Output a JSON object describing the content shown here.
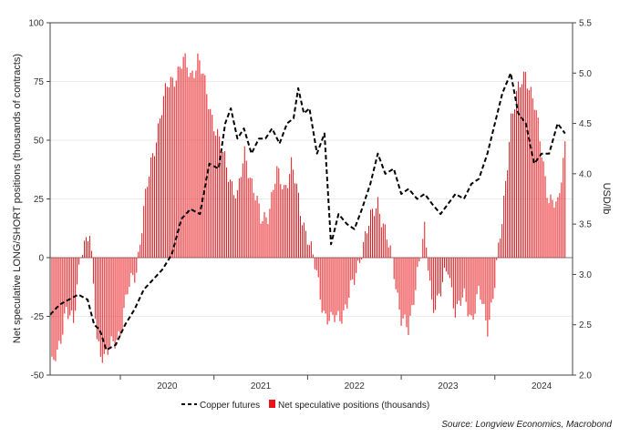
{
  "chart_data": {
    "type": "bar+line",
    "ylabel_left": "Net speculative LONG/SHORT positions (thousands of contracts)",
    "ylabel_right": "USD/lb",
    "ylim_left": [
      -50,
      100
    ],
    "ylim_right": [
      2.0,
      5.5
    ],
    "yticks_left": [
      "-50",
      "-25",
      "0",
      "25",
      "50",
      "75",
      "100"
    ],
    "yticks_right": [
      "2.0",
      "2.5",
      "3.0",
      "3.5",
      "4.0",
      "4.5",
      "5.0",
      "5.5"
    ],
    "x_range": [
      2019.25,
      2024.83
    ],
    "xticks": [
      "2020",
      "2021",
      "2022",
      "2023",
      "2024"
    ],
    "legend": [
      "Copper futures",
      "Net speculative positions (thousands)"
    ],
    "legend_position": "bottom-center",
    "colors": {
      "copper_futures": "#000000",
      "net_positions": "#e8161b"
    },
    "series": [
      {
        "name": "Net speculative positions (thousands)",
        "style": "bar",
        "axis": "left",
        "points": [
          [
            2019.25,
            -48
          ],
          [
            2019.33,
            -42
          ],
          [
            2019.42,
            -20
          ],
          [
            2019.5,
            -30
          ],
          [
            2019.58,
            5
          ],
          [
            2019.67,
            10
          ],
          [
            2019.75,
            -35
          ],
          [
            2019.83,
            -42
          ],
          [
            2019.92,
            -38
          ],
          [
            2020.0,
            -30
          ],
          [
            2020.08,
            -15
          ],
          [
            2020.17,
            -5
          ],
          [
            2020.25,
            20
          ],
          [
            2020.33,
            40
          ],
          [
            2020.42,
            60
          ],
          [
            2020.5,
            72
          ],
          [
            2020.58,
            78
          ],
          [
            2020.67,
            83
          ],
          [
            2020.75,
            78
          ],
          [
            2020.83,
            85
          ],
          [
            2020.92,
            70
          ],
          [
            2021.0,
            58
          ],
          [
            2021.08,
            45
          ],
          [
            2021.17,
            35
          ],
          [
            2021.25,
            25
          ],
          [
            2021.33,
            45
          ],
          [
            2021.42,
            30
          ],
          [
            2021.5,
            15
          ],
          [
            2021.58,
            20
          ],
          [
            2021.67,
            35
          ],
          [
            2021.75,
            30
          ],
          [
            2021.83,
            40
          ],
          [
            2021.92,
            20
          ],
          [
            2022.0,
            10
          ],
          [
            2022.08,
            -5
          ],
          [
            2022.17,
            -22
          ],
          [
            2022.25,
            -28
          ],
          [
            2022.33,
            -25
          ],
          [
            2022.42,
            -20
          ],
          [
            2022.5,
            -10
          ],
          [
            2022.58,
            5
          ],
          [
            2022.67,
            15
          ],
          [
            2022.75,
            25
          ],
          [
            2022.83,
            10
          ],
          [
            2022.92,
            -5
          ],
          [
            2023.0,
            -25
          ],
          [
            2023.08,
            -33
          ],
          [
            2023.17,
            -5
          ],
          [
            2023.25,
            10
          ],
          [
            2023.33,
            -20
          ],
          [
            2023.42,
            -15
          ],
          [
            2023.5,
            -5
          ],
          [
            2023.58,
            -22
          ],
          [
            2023.67,
            -18
          ],
          [
            2023.75,
            -25
          ],
          [
            2023.83,
            -15
          ],
          [
            2023.92,
            -30
          ],
          [
            2024.0,
            -10
          ],
          [
            2024.08,
            15
          ],
          [
            2024.17,
            60
          ],
          [
            2024.25,
            70
          ],
          [
            2024.33,
            80
          ],
          [
            2024.42,
            65
          ],
          [
            2024.5,
            45
          ],
          [
            2024.58,
            25
          ],
          [
            2024.67,
            20
          ],
          [
            2024.75,
            50
          ]
        ]
      },
      {
        "name": "Copper futures",
        "style": "dashed-line",
        "axis": "right",
        "points": [
          [
            2019.25,
            2.6
          ],
          [
            2019.35,
            2.7
          ],
          [
            2019.45,
            2.75
          ],
          [
            2019.55,
            2.8
          ],
          [
            2019.65,
            2.75
          ],
          [
            2019.72,
            2.5
          ],
          [
            2019.78,
            2.45
          ],
          [
            2019.85,
            2.25
          ],
          [
            2019.95,
            2.3
          ],
          [
            2020.05,
            2.5
          ],
          [
            2020.15,
            2.65
          ],
          [
            2020.25,
            2.85
          ],
          [
            2020.35,
            2.95
          ],
          [
            2020.45,
            3.05
          ],
          [
            2020.55,
            3.2
          ],
          [
            2020.65,
            3.55
          ],
          [
            2020.75,
            3.65
          ],
          [
            2020.85,
            3.6
          ],
          [
            2020.95,
            4.1
          ],
          [
            2021.05,
            4.05
          ],
          [
            2021.12,
            4.5
          ],
          [
            2021.18,
            4.65
          ],
          [
            2021.25,
            4.35
          ],
          [
            2021.32,
            4.45
          ],
          [
            2021.4,
            4.2
          ],
          [
            2021.48,
            4.35
          ],
          [
            2021.55,
            4.35
          ],
          [
            2021.62,
            4.45
          ],
          [
            2021.7,
            4.3
          ],
          [
            2021.78,
            4.5
          ],
          [
            2021.85,
            4.55
          ],
          [
            2021.9,
            4.85
          ],
          [
            2021.96,
            4.6
          ],
          [
            2022.02,
            4.65
          ],
          [
            2022.1,
            4.2
          ],
          [
            2022.18,
            4.4
          ],
          [
            2022.25,
            3.3
          ],
          [
            2022.33,
            3.6
          ],
          [
            2022.42,
            3.5
          ],
          [
            2022.5,
            3.45
          ],
          [
            2022.58,
            3.65
          ],
          [
            2022.67,
            3.9
          ],
          [
            2022.75,
            4.2
          ],
          [
            2022.83,
            4.0
          ],
          [
            2022.92,
            4.05
          ],
          [
            2023.0,
            3.8
          ],
          [
            2023.08,
            3.85
          ],
          [
            2023.17,
            3.75
          ],
          [
            2023.25,
            3.8
          ],
          [
            2023.33,
            3.7
          ],
          [
            2023.42,
            3.6
          ],
          [
            2023.5,
            3.7
          ],
          [
            2023.58,
            3.8
          ],
          [
            2023.67,
            3.75
          ],
          [
            2023.75,
            3.9
          ],
          [
            2023.83,
            3.95
          ],
          [
            2023.92,
            4.2
          ],
          [
            2024.0,
            4.5
          ],
          [
            2024.08,
            4.8
          ],
          [
            2024.17,
            5.0
          ],
          [
            2024.25,
            4.6
          ],
          [
            2024.33,
            4.5
          ],
          [
            2024.42,
            4.1
          ],
          [
            2024.5,
            4.2
          ],
          [
            2024.58,
            4.2
          ],
          [
            2024.67,
            4.5
          ],
          [
            2024.75,
            4.4
          ]
        ]
      }
    ]
  },
  "source": "Source: Longview Economics, Macrobond"
}
